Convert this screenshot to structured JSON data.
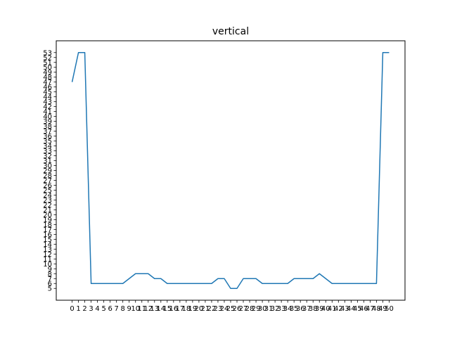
{
  "chart_data": {
    "type": "line",
    "title": "vertical",
    "xlabel": "",
    "ylabel": "",
    "x": [
      0,
      1,
      2,
      3,
      4,
      5,
      6,
      7,
      8,
      9,
      10,
      11,
      12,
      13,
      14,
      15,
      16,
      17,
      18,
      19,
      20,
      21,
      22,
      23,
      24,
      25,
      26,
      27,
      28,
      29,
      30,
      31,
      32,
      33,
      34,
      35,
      36,
      37,
      38,
      39,
      40,
      41,
      42,
      43,
      44,
      45,
      46,
      47,
      48,
      49,
      50
    ],
    "series": [
      {
        "color": "#1f77b4",
        "values": [
          47,
          53,
          53,
          6,
          6,
          6,
          6,
          6,
          6,
          7,
          8,
          8,
          8,
          7,
          7,
          6,
          6,
          6,
          6,
          6,
          6,
          6,
          6,
          7,
          7,
          5,
          5,
          7,
          7,
          7,
          6,
          6,
          6,
          6,
          6,
          7,
          7,
          7,
          7,
          8,
          7,
          6,
          6,
          6,
          6,
          6,
          6,
          6,
          6,
          53,
          53
        ]
      }
    ],
    "xticks": [
      "0",
      "1",
      "2",
      "3",
      "4",
      "5",
      "6",
      "7",
      "8",
      "9",
      "10",
      "11",
      "12",
      "13",
      "14",
      "15",
      "16",
      "17",
      "18",
      "19",
      "20",
      "21",
      "22",
      "23",
      "24",
      "25",
      "26",
      "27",
      "28",
      "29",
      "30",
      "31",
      "32",
      "33",
      "34",
      "35",
      "36",
      "37",
      "38",
      "39",
      "40",
      "41",
      "42",
      "43",
      "44",
      "45",
      "46",
      "47",
      "48",
      "49",
      "50"
    ],
    "yticks": [
      "5",
      "6",
      "7",
      "8",
      "9",
      "10",
      "11",
      "12",
      "13",
      "14",
      "15",
      "16",
      "17",
      "18",
      "19",
      "20",
      "21",
      "22",
      "23",
      "24",
      "25",
      "26",
      "27",
      "28",
      "29",
      "30",
      "31",
      "32",
      "33",
      "34",
      "35",
      "36",
      "37",
      "38",
      "39",
      "40",
      "41",
      "42",
      "43",
      "44",
      "45",
      "46",
      "47",
      "48",
      "49",
      "50",
      "51",
      "52",
      "53"
    ],
    "xlim": [
      -2.5,
      52.5
    ],
    "ylim": [
      2.6,
      55.4
    ],
    "grid": false,
    "legend": "none"
  }
}
